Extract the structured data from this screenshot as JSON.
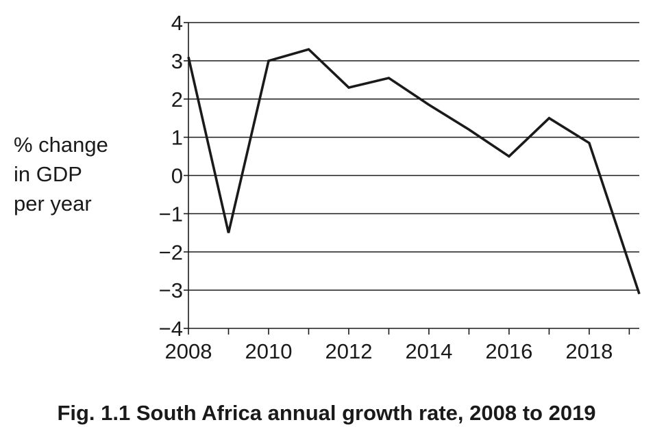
{
  "chart_data": {
    "type": "line",
    "caption": "Fig. 1.1 South Africa annual growth rate, 2008 to 2019",
    "ylabel_lines": [
      "% change",
      "in GDP",
      "per year"
    ],
    "xlabel": "",
    "xlim": [
      2008,
      2019.25
    ],
    "ylim": [
      -4,
      4
    ],
    "x_ticks": [
      2008,
      2009,
      2010,
      2011,
      2012,
      2013,
      2014,
      2015,
      2016,
      2017,
      2018,
      2019
    ],
    "x_tick_labels": [
      "2008",
      "",
      "2010",
      "",
      "2012",
      "",
      "2014",
      "",
      "2016",
      "",
      "2018",
      ""
    ],
    "y_ticks": [
      -4,
      -3,
      -2,
      -1,
      0,
      1,
      2,
      3,
      4
    ],
    "y_tick_labels": [
      "−4",
      "−3",
      "−2",
      "−1",
      "0",
      "1",
      "2",
      "3",
      "4"
    ],
    "grid": "horizontal",
    "series": [
      {
        "x": [
          2008,
          2009,
          2010,
          2011,
          2012,
          2013,
          2014,
          2015,
          2016,
          2017,
          2018,
          2019.25
        ],
        "y": [
          3.1,
          -1.5,
          3.0,
          3.3,
          2.3,
          2.55,
          1.85,
          1.2,
          0.5,
          1.5,
          0.85,
          -3.1
        ]
      }
    ],
    "line_color": "#1a1a1a",
    "grid_color": "#1a1a1a"
  }
}
